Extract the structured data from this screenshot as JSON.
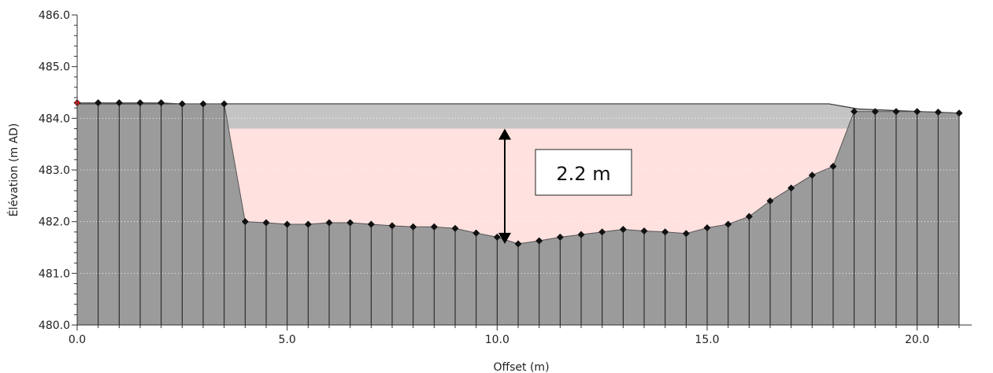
{
  "chart_data": {
    "type": "area",
    "xlabel": "Offset (m)",
    "ylabel": "Élévation (m AD)",
    "xlim": [
      0,
      21.3
    ],
    "ylim": [
      480.0,
      486.0
    ],
    "x_ticks": [
      {
        "value": 0,
        "label": "0.0"
      },
      {
        "value": 5,
        "label": "5.0"
      },
      {
        "value": 10,
        "label": "10.0"
      },
      {
        "value": 15,
        "label": "15.0"
      },
      {
        "value": 20,
        "label": "20.0"
      }
    ],
    "y_ticks": [
      {
        "value": 480,
        "label": "480.0"
      },
      {
        "value": 481,
        "label": "481.0"
      },
      {
        "value": 482,
        "label": "482.0"
      },
      {
        "value": 483,
        "label": "483.0"
      },
      {
        "value": 484,
        "label": "484.0"
      },
      {
        "value": 485,
        "label": "485.0"
      },
      {
        "value": 486,
        "label": "486.0"
      }
    ],
    "grid": "horizontal",
    "ground_profile": {
      "x": [
        0.0,
        0.5,
        1.0,
        1.5,
        2.0,
        2.5,
        3.0,
        3.5,
        4.0,
        4.5,
        5.0,
        5.5,
        6.0,
        6.5,
        7.0,
        7.5,
        8.0,
        8.5,
        9.0,
        9.5,
        10.0,
        10.5,
        11.0,
        11.5,
        12.0,
        12.5,
        13.0,
        13.5,
        14.0,
        14.5,
        15.0,
        15.5,
        16.0,
        16.5,
        17.0,
        17.5,
        18.0,
        18.5,
        19.0,
        19.5,
        20.0,
        20.5,
        21.0
      ],
      "y": [
        484.3,
        484.3,
        484.3,
        484.3,
        484.3,
        484.28,
        484.28,
        484.28,
        482.0,
        481.98,
        481.95,
        481.95,
        481.98,
        481.98,
        481.95,
        481.92,
        481.9,
        481.9,
        481.87,
        481.78,
        481.7,
        481.57,
        481.63,
        481.7,
        481.75,
        481.8,
        481.85,
        481.82,
        481.8,
        481.77,
        481.88,
        481.95,
        482.1,
        482.4,
        482.65,
        482.9,
        483.07,
        484.13,
        484.13,
        484.13,
        484.13,
        484.12,
        484.1
      ]
    },
    "top_level_line": {
      "x": [
        0.0,
        3.5,
        17.9,
        18.6,
        21.0
      ],
      "y": [
        484.28,
        484.28,
        484.28,
        484.18,
        484.1
      ]
    },
    "water_surface": 483.8,
    "water_bed": 481.57,
    "depth_arrow_x": 10.5,
    "colors": {
      "ground_fill": "#9b9b9b",
      "water_fill": "#ffe1df",
      "freeboard_fill": "#c4c4c4",
      "marker": "#111111",
      "start_marker": "#d11a1a"
    },
    "annotation": {
      "text": "2.2 m"
    }
  }
}
